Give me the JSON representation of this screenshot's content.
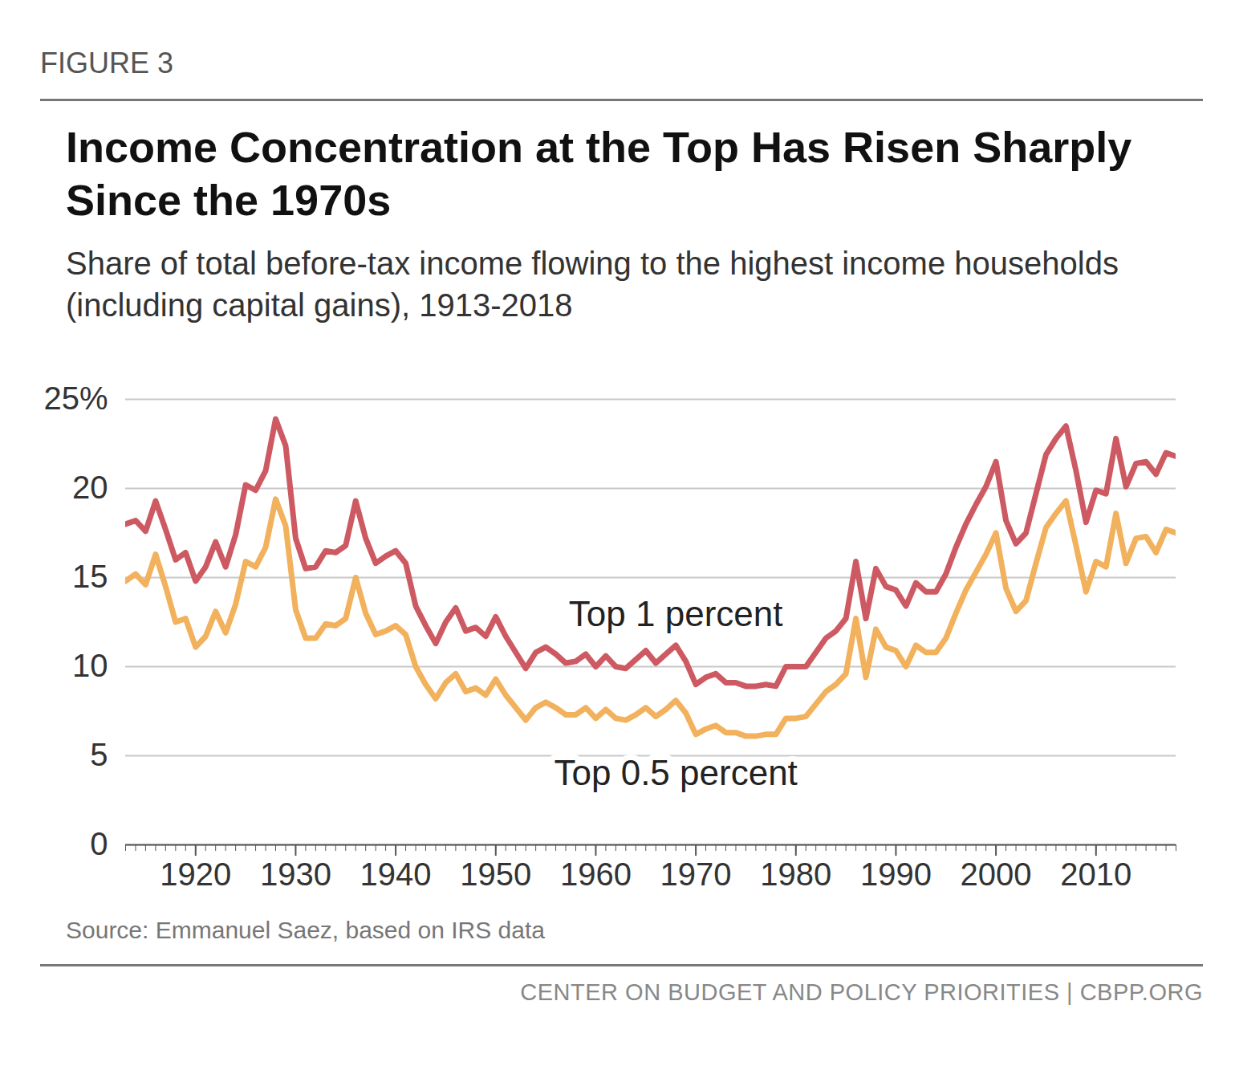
{
  "chart_data": {
    "type": "line",
    "figure_label": "FIGURE 3",
    "title": "Income Concentration at the Top Has Risen Sharply Since the 1970s",
    "subtitle": "Share of total before-tax income flowing to the highest income households (including capital gains), 1913-2018",
    "source": "Source: Emmanuel Saez, based on IRS data",
    "footer": "CENTER ON BUDGET AND POLICY PRIORITIES | CBPP.ORG",
    "x": [
      1913,
      1914,
      1915,
      1916,
      1917,
      1918,
      1919,
      1920,
      1921,
      1922,
      1923,
      1924,
      1925,
      1926,
      1927,
      1928,
      1929,
      1930,
      1931,
      1932,
      1933,
      1934,
      1935,
      1936,
      1937,
      1938,
      1939,
      1940,
      1941,
      1942,
      1943,
      1944,
      1945,
      1946,
      1947,
      1948,
      1949,
      1950,
      1951,
      1952,
      1953,
      1954,
      1955,
      1956,
      1957,
      1958,
      1959,
      1960,
      1961,
      1962,
      1963,
      1964,
      1965,
      1966,
      1967,
      1968,
      1969,
      1970,
      1971,
      1972,
      1973,
      1974,
      1975,
      1976,
      1977,
      1978,
      1979,
      1980,
      1981,
      1982,
      1983,
      1984,
      1985,
      1986,
      1987,
      1988,
      1989,
      1990,
      1991,
      1992,
      1993,
      1994,
      1995,
      1996,
      1997,
      1998,
      1999,
      2000,
      2001,
      2002,
      2003,
      2004,
      2005,
      2006,
      2007,
      2008,
      2009,
      2010,
      2011,
      2012,
      2013,
      2014,
      2015,
      2016,
      2017,
      2018
    ],
    "series": [
      {
        "name": "Top 1 percent",
        "color": "#cd5a62",
        "values": [
          18.0,
          18.2,
          17.6,
          19.3,
          17.7,
          16.0,
          16.4,
          14.8,
          15.6,
          17.0,
          15.6,
          17.4,
          20.2,
          19.9,
          21.0,
          23.9,
          22.4,
          17.2,
          15.5,
          15.6,
          16.5,
          16.4,
          16.8,
          19.3,
          17.2,
          15.8,
          16.2,
          16.5,
          15.8,
          13.4,
          12.3,
          11.3,
          12.5,
          13.3,
          12.0,
          12.2,
          11.7,
          12.8,
          11.7,
          10.8,
          9.9,
          10.8,
          11.1,
          10.7,
          10.2,
          10.3,
          10.7,
          10.0,
          10.6,
          10.0,
          9.9,
          10.4,
          10.9,
          10.2,
          10.7,
          11.2,
          10.3,
          9.0,
          9.4,
          9.6,
          9.1,
          9.1,
          8.9,
          8.9,
          9.0,
          8.9,
          10.0,
          10.0,
          10.0,
          10.8,
          11.6,
          12.0,
          12.7,
          15.9,
          12.7,
          15.5,
          14.5,
          14.3,
          13.4,
          14.7,
          14.2,
          14.2,
          15.2,
          16.7,
          18.0,
          19.1,
          20.1,
          21.5,
          18.2,
          16.9,
          17.5,
          19.7,
          21.9,
          22.8,
          23.5,
          21.0,
          18.1,
          19.9,
          19.7,
          22.8,
          20.1,
          21.4,
          21.5,
          20.8,
          22.0,
          21.8
        ]
      },
      {
        "name": "Top 0.5 percent",
        "color": "#f2b15c",
        "values": [
          14.8,
          15.2,
          14.6,
          16.3,
          14.5,
          12.5,
          12.7,
          11.1,
          11.7,
          13.1,
          11.9,
          13.5,
          15.9,
          15.6,
          16.7,
          19.4,
          17.9,
          13.2,
          11.6,
          11.6,
          12.4,
          12.3,
          12.7,
          15.0,
          13.0,
          11.8,
          12.0,
          12.3,
          11.8,
          10.0,
          9.0,
          8.2,
          9.1,
          9.6,
          8.6,
          8.8,
          8.4,
          9.3,
          8.4,
          7.7,
          7.0,
          7.7,
          8.0,
          7.7,
          7.3,
          7.3,
          7.7,
          7.1,
          7.6,
          7.1,
          7.0,
          7.3,
          7.7,
          7.2,
          7.6,
          8.1,
          7.4,
          6.2,
          6.5,
          6.7,
          6.3,
          6.3,
          6.1,
          6.1,
          6.2,
          6.2,
          7.1,
          7.1,
          7.2,
          7.9,
          8.6,
          9.0,
          9.6,
          12.7,
          9.4,
          12.1,
          11.1,
          10.9,
          10.0,
          11.2,
          10.8,
          10.8,
          11.6,
          13.0,
          14.3,
          15.3,
          16.3,
          17.5,
          14.4,
          13.1,
          13.7,
          15.8,
          17.8,
          18.6,
          19.3,
          16.8,
          14.2,
          15.9,
          15.6,
          18.6,
          15.8,
          17.2,
          17.3,
          16.4,
          17.7,
          17.5
        ]
      }
    ],
    "xlim": [
      1913,
      2018
    ],
    "xticks": [
      1920,
      1930,
      1940,
      1950,
      1960,
      1970,
      1980,
      1990,
      2000,
      2010
    ],
    "ylim": [
      0,
      25
    ],
    "yticks": [
      0,
      5,
      10,
      15,
      20,
      {
        "value": 25,
        "label": "25%"
      }
    ],
    "grid": true,
    "annotations": [
      {
        "text": "Top 1 percent",
        "x": 1968,
        "y": 12.9
      },
      {
        "text": "Top 0.5 percent",
        "x": 1968,
        "y": 4.0
      }
    ]
  }
}
